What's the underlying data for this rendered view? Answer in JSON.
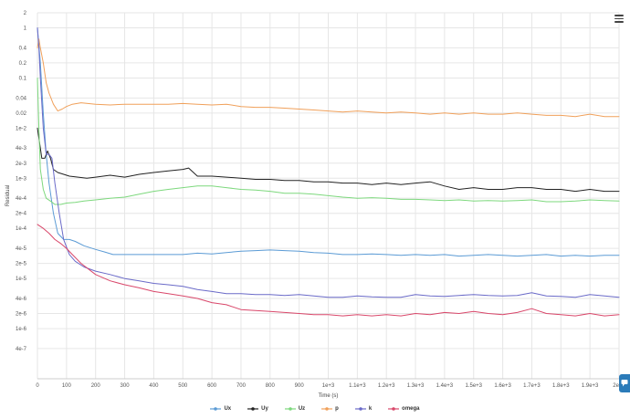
{
  "menu_icon": "hamburger-menu-icon",
  "side_icon": "chat-bubble-icon",
  "chart_data": {
    "type": "line",
    "xlabel": "Time (s)",
    "ylabel": "Residual",
    "yscale": "log",
    "grid": true,
    "legend_position": "bottom-center",
    "xlim": [
      0,
      2000
    ],
    "ylim": [
      1e-07,
      2
    ],
    "x_ticks": [
      {
        "value": 0,
        "label": "0"
      },
      {
        "value": 100,
        "label": "100"
      },
      {
        "value": 200,
        "label": "200"
      },
      {
        "value": 300,
        "label": "300"
      },
      {
        "value": 400,
        "label": "400"
      },
      {
        "value": 500,
        "label": "500"
      },
      {
        "value": 600,
        "label": "600"
      },
      {
        "value": 700,
        "label": "700"
      },
      {
        "value": 800,
        "label": "800"
      },
      {
        "value": 900,
        "label": "900"
      },
      {
        "value": 1000,
        "label": "1e+3"
      },
      {
        "value": 1100,
        "label": "1.1e+3"
      },
      {
        "value": 1200,
        "label": "1.2e+3"
      },
      {
        "value": 1300,
        "label": "1.3e+3"
      },
      {
        "value": 1400,
        "label": "1.4e+3"
      },
      {
        "value": 1500,
        "label": "1.5e+3"
      },
      {
        "value": 1600,
        "label": "1.6e+3"
      },
      {
        "value": 1700,
        "label": "1.7e+3"
      },
      {
        "value": 1800,
        "label": "1.8e+3"
      },
      {
        "value": 1900,
        "label": "1.9e+3"
      },
      {
        "value": 2000,
        "label": "2e+3"
      }
    ],
    "y_ticks": [
      {
        "value": 2,
        "label": "2"
      },
      {
        "value": 1,
        "label": "1"
      },
      {
        "value": 0.4,
        "label": "0.4"
      },
      {
        "value": 0.2,
        "label": "0.2"
      },
      {
        "value": 0.1,
        "label": "0.1"
      },
      {
        "value": 0.04,
        "label": "0.04"
      },
      {
        "value": 0.02,
        "label": "0.02"
      },
      {
        "value": 0.01,
        "label": "1e-2"
      },
      {
        "value": 0.004,
        "label": "4e-3"
      },
      {
        "value": 0.002,
        "label": "2e-3"
      },
      {
        "value": 0.001,
        "label": "1e-3"
      },
      {
        "value": 0.0004,
        "label": "4e-4"
      },
      {
        "value": 0.0002,
        "label": "2e-4"
      },
      {
        "value": 0.0001,
        "label": "1e-4"
      },
      {
        "value": 4e-05,
        "label": "4e-5"
      },
      {
        "value": 2e-05,
        "label": "2e-5"
      },
      {
        "value": 1e-05,
        "label": "1e-5"
      },
      {
        "value": 4e-06,
        "label": "4e-6"
      },
      {
        "value": 2e-06,
        "label": "2e-6"
      },
      {
        "value": 1e-06,
        "label": "1e-6"
      },
      {
        "value": 4e-07,
        "label": "4e-7"
      }
    ],
    "series": [
      {
        "name": "Ux",
        "color": "#5b9bd5",
        "x": [
          0,
          10,
          20,
          30,
          40,
          55,
          70,
          90,
          110,
          130,
          160,
          200,
          230,
          260,
          300,
          350,
          400,
          450,
          500,
          550,
          600,
          650,
          700,
          750,
          800,
          850,
          900,
          950,
          1000,
          1050,
          1100,
          1150,
          1200,
          1250,
          1300,
          1350,
          1400,
          1450,
          1500,
          1550,
          1600,
          1650,
          1700,
          1750,
          1800,
          1850,
          1900,
          1950,
          2000
        ],
        "y": [
          1.0,
          0.2,
          0.02,
          0.003,
          0.0008,
          0.0002,
          8e-05,
          6e-05,
          6e-05,
          5.5e-05,
          4.5e-05,
          3.8e-05,
          3.4e-05,
          3e-05,
          3e-05,
          3e-05,
          3e-05,
          3e-05,
          3e-05,
          3.2e-05,
          3.1e-05,
          3.3e-05,
          3.5e-05,
          3.6e-05,
          3.7e-05,
          3.6e-05,
          3.5e-05,
          3.3e-05,
          3.2e-05,
          3e-05,
          3e-05,
          3.1e-05,
          3e-05,
          2.9e-05,
          3e-05,
          2.9e-05,
          3e-05,
          2.8e-05,
          2.9e-05,
          3e-05,
          2.9e-05,
          2.8e-05,
          2.9e-05,
          3e-05,
          2.8e-05,
          2.9e-05,
          2.8e-05,
          2.9e-05,
          2.9e-05
        ]
      },
      {
        "name": "Uy",
        "color": "#222222",
        "x": [
          0,
          10,
          15,
          25,
          35,
          45,
          55,
          70,
          90,
          110,
          140,
          170,
          200,
          250,
          300,
          350,
          400,
          450,
          500,
          520,
          550,
          600,
          650,
          700,
          750,
          800,
          850,
          900,
          950,
          1000,
          1050,
          1100,
          1150,
          1200,
          1250,
          1300,
          1350,
          1400,
          1450,
          1500,
          1550,
          1600,
          1650,
          1700,
          1750,
          1800,
          1850,
          1900,
          1950,
          2000
        ],
        "y": [
          0.01,
          0.004,
          0.0025,
          0.0025,
          0.0035,
          0.0025,
          0.0015,
          0.0013,
          0.0012,
          0.0011,
          0.00105,
          0.001,
          0.00105,
          0.00115,
          0.00105,
          0.0012,
          0.0013,
          0.0014,
          0.0015,
          0.0016,
          0.0011,
          0.0011,
          0.00105,
          0.001,
          0.00095,
          0.00095,
          0.0009,
          0.0009,
          0.00085,
          0.00085,
          0.0008,
          0.0008,
          0.00075,
          0.0008,
          0.00075,
          0.0008,
          0.00085,
          0.0007,
          0.0006,
          0.00065,
          0.0006,
          0.0006,
          0.00065,
          0.00065,
          0.0006,
          0.0006,
          0.00055,
          0.0006,
          0.00055,
          0.00055
        ]
      },
      {
        "name": "Uz",
        "color": "#7dd87d",
        "x": [
          0,
          5,
          10,
          20,
          30,
          45,
          60,
          80,
          100,
          130,
          160,
          200,
          250,
          300,
          350,
          400,
          450,
          500,
          550,
          600,
          650,
          700,
          750,
          800,
          850,
          900,
          950,
          1000,
          1050,
          1100,
          1150,
          1200,
          1250,
          1300,
          1350,
          1400,
          1450,
          1500,
          1550,
          1600,
          1650,
          1700,
          1750,
          1800,
          1850,
          1900,
          1950,
          2000
        ],
        "y": [
          0.1,
          0.01,
          0.0015,
          0.0006,
          0.0004,
          0.00035,
          0.0003,
          0.0003,
          0.00032,
          0.00033,
          0.00035,
          0.00037,
          0.0004,
          0.00042,
          0.00048,
          0.00055,
          0.0006,
          0.00065,
          0.0007,
          0.0007,
          0.00065,
          0.0006,
          0.00058,
          0.00055,
          0.0005,
          0.0005,
          0.00048,
          0.00045,
          0.00042,
          0.0004,
          0.00041,
          0.0004,
          0.00038,
          0.00038,
          0.00037,
          0.00036,
          0.00037,
          0.00035,
          0.00036,
          0.00035,
          0.00036,
          0.00037,
          0.00034,
          0.00034,
          0.00035,
          0.00037,
          0.00036,
          0.00035
        ]
      },
      {
        "name": "p",
        "color": "#f0a05a",
        "x": [
          0,
          5,
          10,
          20,
          30,
          40,
          55,
          70,
          85,
          100,
          120,
          150,
          200,
          250,
          300,
          350,
          400,
          450,
          500,
          550,
          600,
          650,
          700,
          750,
          800,
          850,
          900,
          950,
          1000,
          1050,
          1100,
          1150,
          1200,
          1250,
          1300,
          1350,
          1400,
          1450,
          1500,
          1550,
          1600,
          1650,
          1700,
          1750,
          1800,
          1850,
          1900,
          1950,
          2000
        ],
        "y": [
          0.4,
          0.6,
          0.4,
          0.2,
          0.08,
          0.05,
          0.03,
          0.022,
          0.024,
          0.027,
          0.03,
          0.032,
          0.03,
          0.029,
          0.03,
          0.03,
          0.03,
          0.03,
          0.031,
          0.03,
          0.029,
          0.03,
          0.027,
          0.026,
          0.026,
          0.025,
          0.024,
          0.023,
          0.022,
          0.021,
          0.022,
          0.021,
          0.02,
          0.021,
          0.02,
          0.019,
          0.02,
          0.019,
          0.02,
          0.019,
          0.019,
          0.02,
          0.019,
          0.018,
          0.018,
          0.017,
          0.019,
          0.017,
          0.017
        ]
      },
      {
        "name": "k",
        "color": "#6a6ac8",
        "x": [
          0,
          5,
          10,
          20,
          30,
          40,
          50,
          60,
          75,
          90,
          110,
          130,
          160,
          200,
          250,
          300,
          350,
          400,
          450,
          500,
          550,
          600,
          650,
          700,
          750,
          800,
          850,
          900,
          950,
          1000,
          1050,
          1100,
          1150,
          1200,
          1250,
          1300,
          1350,
          1400,
          1450,
          1500,
          1550,
          1600,
          1650,
          1700,
          1750,
          1800,
          1850,
          1900,
          1950,
          2000
        ],
        "y": [
          1.0,
          0.4,
          0.1,
          0.01,
          0.003,
          0.003,
          0.0025,
          0.0008,
          0.0002,
          6e-05,
          3e-05,
          2.2e-05,
          1.7e-05,
          1.4e-05,
          1.2e-05,
          1e-05,
          9e-06,
          8e-06,
          7.5e-06,
          7e-06,
          6e-06,
          5.5e-06,
          5e-06,
          5e-06,
          4.8e-06,
          4.8e-06,
          4.6e-06,
          4.8e-06,
          4.5e-06,
          4.2e-06,
          4.2e-06,
          4.5e-06,
          4.3e-06,
          4.2e-06,
          4.2e-06,
          4.8e-06,
          4.5e-06,
          4.4e-06,
          4.6e-06,
          4.8e-06,
          4.6e-06,
          4.5e-06,
          4.6e-06,
          5.2e-06,
          4.5e-06,
          4.4e-06,
          4.2e-06,
          4.8e-06,
          4.5e-06,
          4.2e-06
        ]
      },
      {
        "name": "omega",
        "color": "#d9476a",
        "x": [
          0,
          20,
          40,
          60,
          80,
          100,
          120,
          150,
          200,
          250,
          300,
          350,
          400,
          450,
          500,
          550,
          600,
          650,
          700,
          750,
          800,
          850,
          900,
          950,
          1000,
          1050,
          1100,
          1150,
          1200,
          1250,
          1300,
          1350,
          1400,
          1450,
          1500,
          1550,
          1600,
          1650,
          1700,
          1750,
          1800,
          1850,
          1900,
          1950,
          2000
        ],
        "y": [
          0.00012,
          0.0001,
          8e-05,
          6e-05,
          5e-05,
          4e-05,
          3e-05,
          2e-05,
          1.2e-05,
          9e-06,
          7.5e-06,
          6.5e-06,
          5.5e-06,
          5e-06,
          4.5e-06,
          4e-06,
          3.3e-06,
          3e-06,
          2.4e-06,
          2.3e-06,
          2.2e-06,
          2.1e-06,
          2e-06,
          1.9e-06,
          1.9e-06,
          1.8e-06,
          1.9e-06,
          1.8e-06,
          1.9e-06,
          1.8e-06,
          2e-06,
          1.9e-06,
          2.1e-06,
          2e-06,
          2.2e-06,
          2e-06,
          1.9e-06,
          2.1e-06,
          2.5e-06,
          2e-06,
          1.9e-06,
          1.8e-06,
          2e-06,
          1.8e-06,
          1.9e-06
        ]
      }
    ]
  }
}
